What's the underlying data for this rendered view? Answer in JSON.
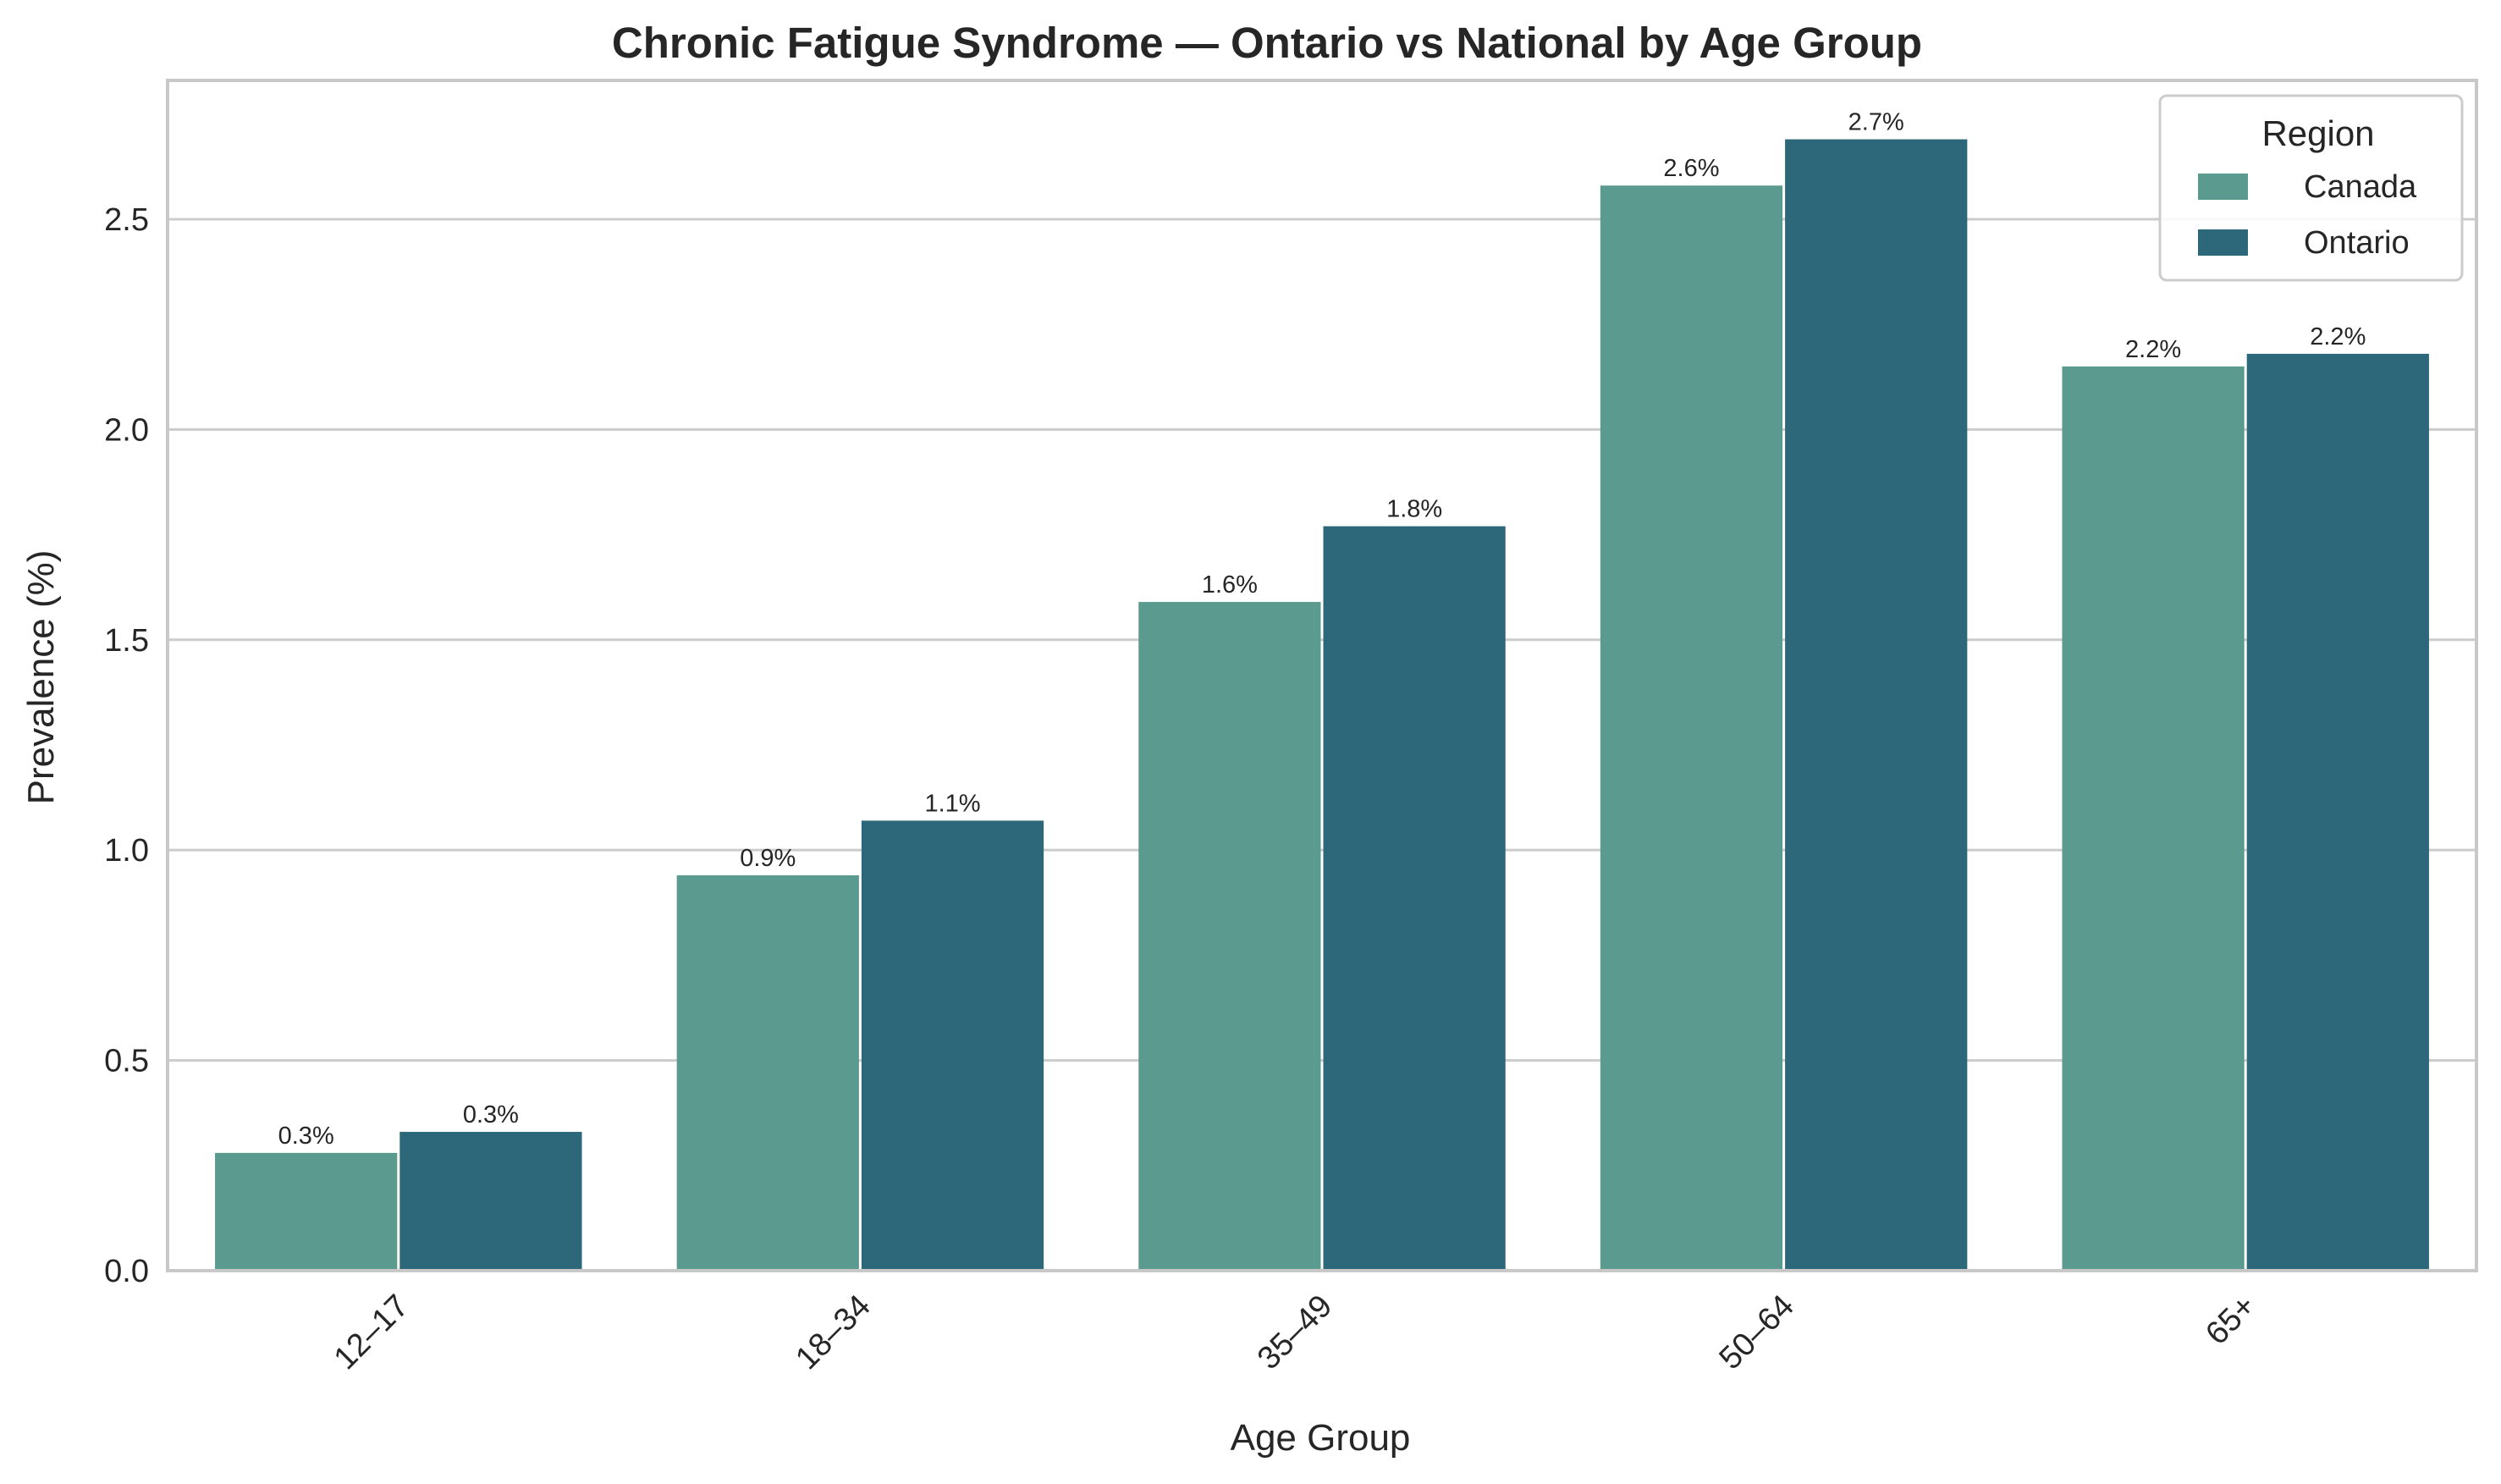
{
  "chart_data": {
    "type": "bar",
    "title": "Chronic Fatigue Syndrome — Ontario vs National by Age Group",
    "xlabel": "Age Group",
    "ylabel": "Prevalence (%)",
    "categories": [
      "12–17",
      "18–34",
      "35–49",
      "50–64",
      "65+"
    ],
    "series": [
      {
        "name": "Canada",
        "color": "#5b9a8f",
        "values": [
          0.28,
          0.94,
          1.59,
          2.58,
          2.15
        ],
        "labels": [
          "0.3%",
          "0.9%",
          "1.6%",
          "2.6%",
          "2.2%"
        ]
      },
      {
        "name": "Ontario",
        "color": "#2c677a",
        "values": [
          0.33,
          1.07,
          1.77,
          2.69,
          2.18
        ],
        "labels": [
          "0.3%",
          "1.1%",
          "1.8%",
          "2.7%",
          "2.2%"
        ]
      }
    ],
    "yticks": [
      0.0,
      0.5,
      1.0,
      1.5,
      2.0,
      2.5
    ],
    "ytick_labels": [
      "0.0",
      "0.5",
      "1.0",
      "1.5",
      "2.0",
      "2.5"
    ],
    "ylim": [
      0,
      2.83
    ],
    "grid": "horizontal",
    "legend": {
      "title": "Region",
      "placement": "top-right"
    }
  }
}
